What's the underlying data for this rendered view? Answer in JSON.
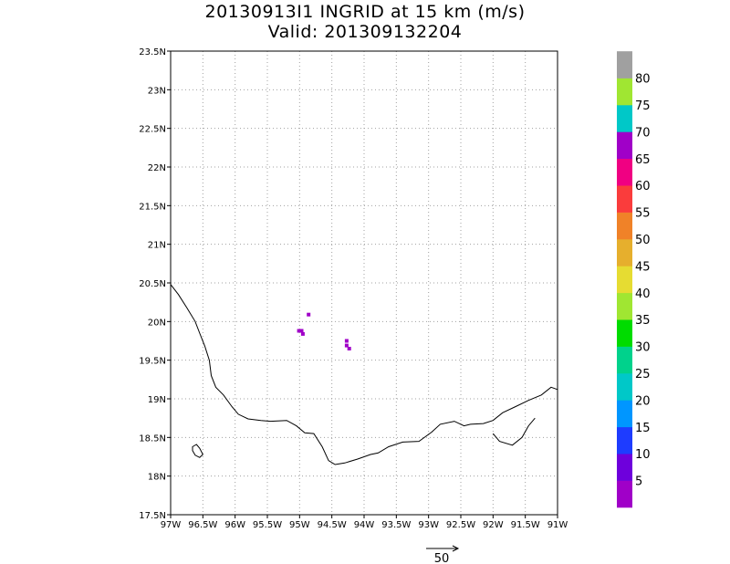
{
  "title": {
    "line1": "20130913I1 INGRID at 15 km (m/s)",
    "line2": "Valid: 201309132204"
  },
  "map": {
    "lon_range": [
      -97,
      -91
    ],
    "lat_range": [
      17.5,
      23.5
    ],
    "grid": "dotted",
    "x_ticks": [
      {
        "value": -97,
        "label": "97W"
      },
      {
        "value": -96.5,
        "label": "96.5W"
      },
      {
        "value": -96,
        "label": "96W"
      },
      {
        "value": -95.5,
        "label": "95.5W"
      },
      {
        "value": -95,
        "label": "95W"
      },
      {
        "value": -94.5,
        "label": "94.5W"
      },
      {
        "value": -94,
        "label": "94W"
      },
      {
        "value": -93.5,
        "label": "93.5W"
      },
      {
        "value": -93,
        "label": "93W"
      },
      {
        "value": -92.5,
        "label": "92.5W"
      },
      {
        "value": -92,
        "label": "92W"
      },
      {
        "value": -91.5,
        "label": "91.5W"
      },
      {
        "value": -91,
        "label": "91W"
      }
    ],
    "y_ticks": [
      {
        "value": 17.5,
        "label": "17.5N"
      },
      {
        "value": 18,
        "label": "18N"
      },
      {
        "value": 18.5,
        "label": "18.5N"
      },
      {
        "value": 19,
        "label": "19N"
      },
      {
        "value": 19.5,
        "label": "19.5N"
      },
      {
        "value": 20,
        "label": "20N"
      },
      {
        "value": 20.5,
        "label": "20.5N"
      },
      {
        "value": 21,
        "label": "21N"
      },
      {
        "value": 21.5,
        "label": "21.5N"
      },
      {
        "value": 22,
        "label": "22N"
      },
      {
        "value": 22.5,
        "label": "22.5N"
      },
      {
        "value": 23,
        "label": "23N"
      },
      {
        "value": 23.5,
        "label": "23.5N"
      }
    ],
    "coastline": [
      [
        -97.0,
        20.48
      ],
      [
        -96.88,
        20.35
      ],
      [
        -96.75,
        20.18
      ],
      [
        -96.62,
        20.0
      ],
      [
        -96.55,
        19.85
      ],
      [
        -96.47,
        19.68
      ],
      [
        -96.4,
        19.5
      ],
      [
        -96.37,
        19.3
      ],
      [
        -96.3,
        19.15
      ],
      [
        -96.18,
        19.05
      ],
      [
        -96.05,
        18.9
      ],
      [
        -95.95,
        18.8
      ],
      [
        -95.8,
        18.74
      ],
      [
        -95.6,
        18.72
      ],
      [
        -95.45,
        18.71
      ],
      [
        -95.2,
        18.72
      ],
      [
        -95.05,
        18.65
      ],
      [
        -94.92,
        18.56
      ],
      [
        -94.78,
        18.55
      ],
      [
        -94.65,
        18.38
      ],
      [
        -94.55,
        18.2
      ],
      [
        -94.45,
        18.15
      ],
      [
        -94.3,
        18.17
      ],
      [
        -94.1,
        18.22
      ],
      [
        -93.9,
        18.28
      ],
      [
        -93.78,
        18.3
      ],
      [
        -93.62,
        18.38
      ],
      [
        -93.4,
        18.44
      ],
      [
        -93.15,
        18.45
      ],
      [
        -92.95,
        18.57
      ],
      [
        -92.82,
        18.67
      ],
      [
        -92.6,
        18.71
      ],
      [
        -92.45,
        18.65
      ],
      [
        -92.35,
        18.67
      ],
      [
        -92.15,
        18.68
      ],
      [
        -92.0,
        18.72
      ],
      [
        -91.85,
        18.82
      ],
      [
        -91.65,
        18.9
      ],
      [
        -91.45,
        18.98
      ],
      [
        -91.25,
        19.05
      ],
      [
        -91.1,
        19.15
      ],
      [
        -91.0,
        19.12
      ]
    ],
    "lagoon": [
      [
        -92.0,
        18.55
      ],
      [
        -91.9,
        18.45
      ],
      [
        -91.7,
        18.4
      ],
      [
        -91.55,
        18.5
      ],
      [
        -91.45,
        18.65
      ],
      [
        -91.35,
        18.75
      ]
    ],
    "island": [
      [
        -96.66,
        18.38
      ],
      [
        -96.6,
        18.41
      ],
      [
        -96.55,
        18.36
      ],
      [
        -96.5,
        18.28
      ],
      [
        -96.55,
        18.24
      ],
      [
        -96.62,
        18.27
      ],
      [
        -96.66,
        18.33
      ]
    ],
    "wind_cells": [
      {
        "lon": -94.86,
        "lat": 20.09,
        "speed": 3
      },
      {
        "lon": -95.01,
        "lat": 19.88,
        "speed": 3
      },
      {
        "lon": -94.97,
        "lat": 19.88,
        "speed": 3
      },
      {
        "lon": -94.95,
        "lat": 19.84,
        "speed": 3
      },
      {
        "lon": -94.27,
        "lat": 19.75,
        "speed": 3
      },
      {
        "lon": -94.27,
        "lat": 19.69,
        "speed": 3
      },
      {
        "lon": -94.23,
        "lat": 19.65,
        "speed": 3
      }
    ]
  },
  "colorbar": {
    "colors": [
      "#a000c8",
      "#6e00dc",
      "#1e3cff",
      "#0096ff",
      "#00c8c8",
      "#00d28c",
      "#00dc00",
      "#a0e632",
      "#e6dc32",
      "#e6af2d",
      "#f08228",
      "#fa3c3c",
      "#f00082",
      "#a000c8",
      "#00c8c8",
      "#a0e632",
      "#a0a0a0"
    ],
    "labels": [
      "5",
      "10",
      "15",
      "20",
      "25",
      "30",
      "35",
      "40",
      "45",
      "50",
      "55",
      "60",
      "65",
      "70",
      "75",
      "80"
    ]
  },
  "vector_reference": {
    "label": "50"
  }
}
